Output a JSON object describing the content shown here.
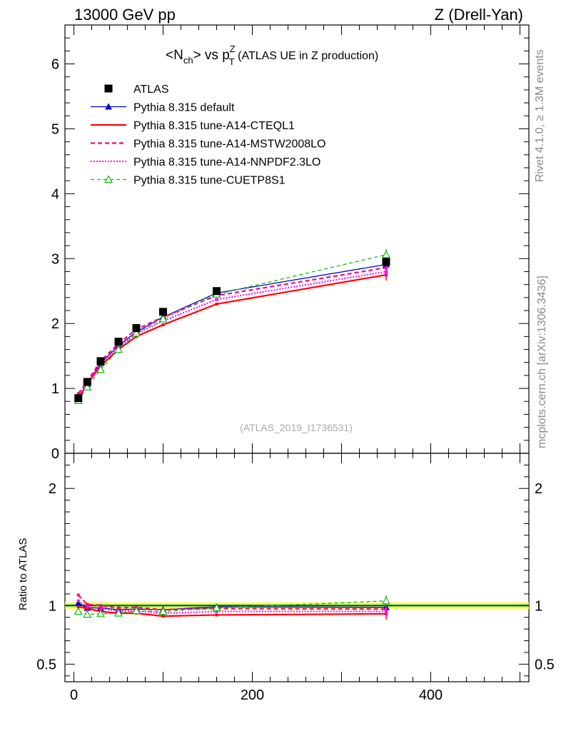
{
  "header": {
    "left": "13000 GeV pp",
    "right": "Z (Drell-Yan)"
  },
  "side_text": {
    "rivet": "Rivet 4.1.0, ≥ 1.3M events",
    "mcplots": "mcplots.cern.ch [arXiv:1306.3436]"
  },
  "plot_title": {
    "a": "<N",
    "a_sub": "ch",
    "b": "> vs p",
    "b_sup": "Z",
    "b_sub": "T",
    "c": " (ATLAS UE in Z production)"
  },
  "watermark": "(ATLAS_2019_I1736531)",
  "colors": {
    "data": "#000000",
    "default": "#0000cc",
    "cteql1": "#ff0000",
    "mstw": "#ff0080",
    "nnpdf": "#ff00ff",
    "cuetp8s1": "#11bb11",
    "band_outer": "#ffff66",
    "band_inner": "#99dd66"
  },
  "chart_data": [
    {
      "type": "scatter",
      "panel": "main",
      "title": "<Nch> vs pT^Z (ATLAS UE in Z production)",
      "xlabel": "",
      "ylabel": "",
      "xlim": [
        -10,
        510
      ],
      "ylim": [
        0,
        6.6
      ],
      "x_ticks": [
        0,
        200,
        400
      ],
      "y_ticks": [
        0,
        1,
        2,
        3,
        4,
        5,
        6
      ],
      "y_tick_labels": [
        "0",
        "1",
        "2",
        "3",
        "4",
        "5",
        "6"
      ],
      "legend_position": "top-left",
      "x": [
        5,
        15,
        30,
        50,
        70,
        100,
        160,
        350
      ],
      "series": [
        {
          "name": "ATLAS",
          "key": "data",
          "style": "square",
          "values": [
            0.85,
            1.1,
            1.42,
            1.72,
            1.93,
            2.18,
            2.5,
            2.95
          ]
        },
        {
          "name": "Pythia 8.315 default",
          "key": "default",
          "style": "solid-triangle",
          "values": [
            0.87,
            1.07,
            1.39,
            1.66,
            1.87,
            2.1,
            2.47,
            2.91
          ]
        },
        {
          "name": "Pythia 8.315 tune-A14-CTEQL1",
          "key": "cteql1",
          "style": "solid-thick",
          "values": [
            0.84,
            1.07,
            1.35,
            1.6,
            1.8,
            1.98,
            2.3,
            2.75
          ]
        },
        {
          "name": "Pythia 8.315 tune-A14-MSTW2008LO",
          "key": "mstw",
          "style": "dashed-thick",
          "values": [
            0.92,
            1.11,
            1.42,
            1.69,
            1.91,
            2.1,
            2.43,
            2.86
          ]
        },
        {
          "name": "Pythia 8.315 tune-A14-NNPDF2.3LO",
          "key": "nnpdf",
          "style": "dotted",
          "values": [
            0.88,
            1.08,
            1.38,
            1.64,
            1.84,
            2.04,
            2.37,
            2.8
          ]
        },
        {
          "name": "Pythia 8.315 tune-CUETP8S1",
          "key": "cuetp8s1",
          "style": "dashed-open-triangle",
          "values": [
            0.81,
            1.02,
            1.29,
            1.6,
            1.85,
            2.07,
            2.45,
            3.06
          ]
        }
      ]
    },
    {
      "type": "line",
      "panel": "ratio",
      "ylabel": "Ratio to ATLAS",
      "xlim": [
        -10,
        510
      ],
      "ylim": [
        0.35,
        2.3
      ],
      "x_ticks": [
        0,
        200,
        400
      ],
      "x_tick_labels": [
        "0",
        "200",
        "400"
      ],
      "y_ticks": [
        0.5,
        1,
        2
      ],
      "y_tick_labels": [
        "0.5",
        "1",
        "2"
      ],
      "x": [
        5,
        15,
        30,
        50,
        70,
        100,
        160,
        350
      ],
      "series": [
        {
          "name": "Pythia 8.315 default",
          "key": "default",
          "values": [
            1.02,
            0.98,
            0.98,
            0.965,
            0.97,
            0.965,
            0.99,
            0.985
          ]
        },
        {
          "name": "Pythia 8.315 tune-A14-CTEQL1",
          "key": "cteql1",
          "values": [
            0.99,
            0.975,
            0.95,
            0.935,
            0.935,
            0.91,
            0.92,
            0.93
          ]
        },
        {
          "name": "Pythia 8.315 tune-A14-MSTW2008LO",
          "key": "mstw",
          "values": [
            1.09,
            1.01,
            1.0,
            0.98,
            0.985,
            0.965,
            0.975,
            0.97
          ]
        },
        {
          "name": "Pythia 8.315 tune-A14-NNPDF2.3LO",
          "key": "nnpdf",
          "values": [
            1.04,
            0.99,
            0.975,
            0.955,
            0.955,
            0.935,
            0.95,
            0.95
          ]
        },
        {
          "name": "Pythia 8.315 tune-CUETP8S1",
          "key": "cuetp8s1",
          "values": [
            0.95,
            0.925,
            0.93,
            0.935,
            0.955,
            0.95,
            0.98,
            1.04
          ]
        }
      ]
    }
  ]
}
